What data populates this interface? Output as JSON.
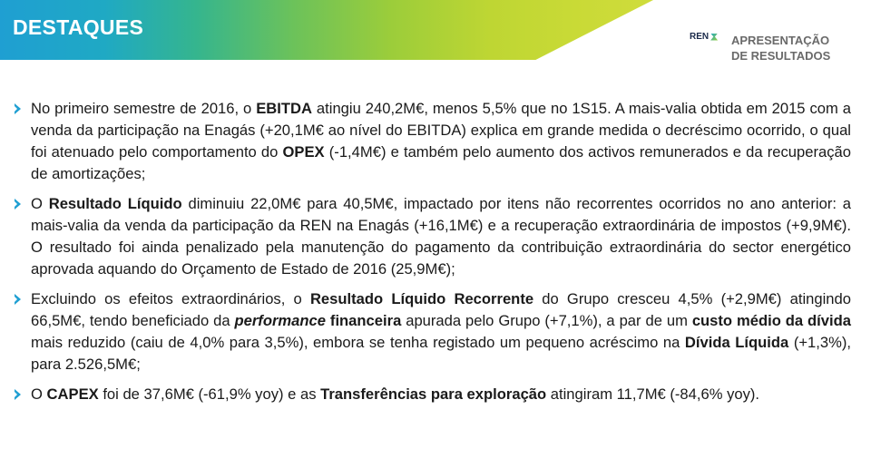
{
  "header": {
    "title": "DESTAQUES",
    "logo_text": "REN",
    "presentation_line1": "APRESENTAÇÃO",
    "presentation_line2": "DE RESULTADOS"
  },
  "bullets": [
    [
      {
        "t": "No primeiro semestre de 2016, o ",
        "s": "n"
      },
      {
        "t": "EBITDA",
        "s": "b"
      },
      {
        "t": " atingiu 240,2M€, menos 5,5% que no 1S15. A mais-valia obtida em 2015 com a venda da participação na Enagás (+20,1M€ ao nível do EBITDA) explica em grande medida o decréscimo ocorrido, o qual foi atenuado pelo comportamento do ",
        "s": "n"
      },
      {
        "t": "OPEX",
        "s": "b"
      },
      {
        "t": " (-1,4M€) e também pelo aumento dos activos remunerados e da recuperação de amortizações;",
        "s": "n"
      }
    ],
    [
      {
        "t": "O ",
        "s": "n"
      },
      {
        "t": "Resultado Líquido",
        "s": "b"
      },
      {
        "t": " diminuiu 22,0M€ para 40,5M€, impactado por itens não recorrentes ocorridos no ano anterior: a mais-valia da venda da participação da REN na Enagás (+16,1M€) e a recuperação extraordinária de impostos (+9,9M€). O resultado foi ainda penalizado pela manutenção do pagamento da contribuição extraordinária do sector energético aprovada aquando do Orçamento de Estado de 2016 (25,9M€);",
        "s": "n"
      }
    ],
    [
      {
        "t": "Excluindo os efeitos extraordinários, o ",
        "s": "n"
      },
      {
        "t": "Resultado Líquido Recorrente",
        "s": "b"
      },
      {
        "t": " do Grupo cresceu 4,5% (+2,9M€) atingindo 66,5M€, tendo beneficiado da ",
        "s": "n"
      },
      {
        "t": "performance",
        "s": "bi"
      },
      {
        "t": " financeira",
        "s": "b"
      },
      {
        "t": " apurada pelo Grupo (+7,1%), a par de um ",
        "s": "n"
      },
      {
        "t": "custo médio da dívida",
        "s": "b"
      },
      {
        "t": " mais reduzido (caiu de 4,0% para 3,5%), embora se tenha registado um pequeno acréscimo na ",
        "s": "n"
      },
      {
        "t": "Dívida Líquida",
        "s": "b"
      },
      {
        "t": " (+1,3%), para 2.526,5M€;",
        "s": "n"
      }
    ],
    [
      {
        "t": "O ",
        "s": "n"
      },
      {
        "t": "CAPEX",
        "s": "b"
      },
      {
        "t": " foi de 37,6M€ (-61,9% yoy) e as ",
        "s": "n"
      },
      {
        "t": "Transferências para exploração",
        "s": "b"
      },
      {
        "t": " atingiram 11,7M€ (-84,6% yoy).",
        "s": "n"
      }
    ]
  ]
}
